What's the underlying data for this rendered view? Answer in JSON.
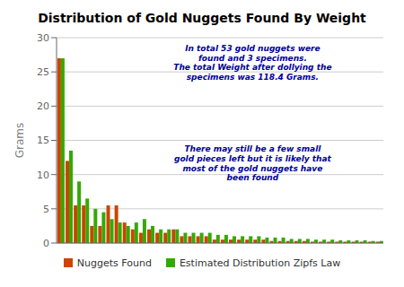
{
  "chart_data": {
    "type": "bar",
    "title": "Distribution of Gold Nuggets Found By Weight",
    "y_label": "Grams",
    "categories": [
      null,
      null,
      null,
      null,
      null,
      null,
      null,
      null,
      null,
      null,
      null,
      null,
      null,
      null,
      null,
      null,
      null,
      null,
      null,
      null,
      null,
      null,
      null,
      null,
      null,
      null,
      null,
      null,
      null,
      null,
      null,
      null,
      null,
      null,
      null,
      null,
      null,
      null,
      null,
      null
    ],
    "series": [
      {
        "name": "Nuggets Found",
        "color": "#cc4400",
        "values": [
          27,
          12,
          5.5,
          5.5,
          2.5,
          2.5,
          5.5,
          5.5,
          3,
          2,
          1.5,
          2,
          1.5,
          1.5,
          2,
          1,
          1,
          1,
          1,
          0.5,
          0.5,
          0.5,
          0.5,
          0.5,
          0.5,
          0.5,
          0.3,
          0.3,
          0.3,
          0.3,
          0.3,
          0.2,
          0.2,
          0.2,
          0.2,
          0.2,
          0.2,
          0.2,
          0.2,
          0.2
        ]
      },
      {
        "name": "Estimated Distribution Zipfs Law",
        "color": "#33aa00",
        "values": [
          27,
          13.5,
          9,
          6.5,
          5,
          4.5,
          3.5,
          3,
          2.5,
          3,
          3.5,
          2.5,
          2,
          2,
          2,
          1.5,
          1.5,
          1.5,
          1.5,
          1.2,
          1.2,
          1,
          1,
          1,
          1,
          0.8,
          0.8,
          0.8,
          0.6,
          0.6,
          0.6,
          0.5,
          0.5,
          0.5,
          0.4,
          0.4,
          0.4,
          0.4,
          0.3,
          0.3
        ]
      }
    ],
    "ylim": [
      0,
      30
    ],
    "yticks": [
      0,
      5,
      10,
      15,
      20,
      25,
      30
    ],
    "grid": true,
    "legend": "bottom",
    "tick_labels": "y",
    "annotations": [
      "In total 53 gold nuggets were\nfound and 3 specimens.\nThe total Weight after dollying the\nspecimens was 118.4 Grams.",
      "There may still be a few small\ngold pieces left but it is likely that\nmost of the gold nuggets have\nbeen found"
    ]
  }
}
